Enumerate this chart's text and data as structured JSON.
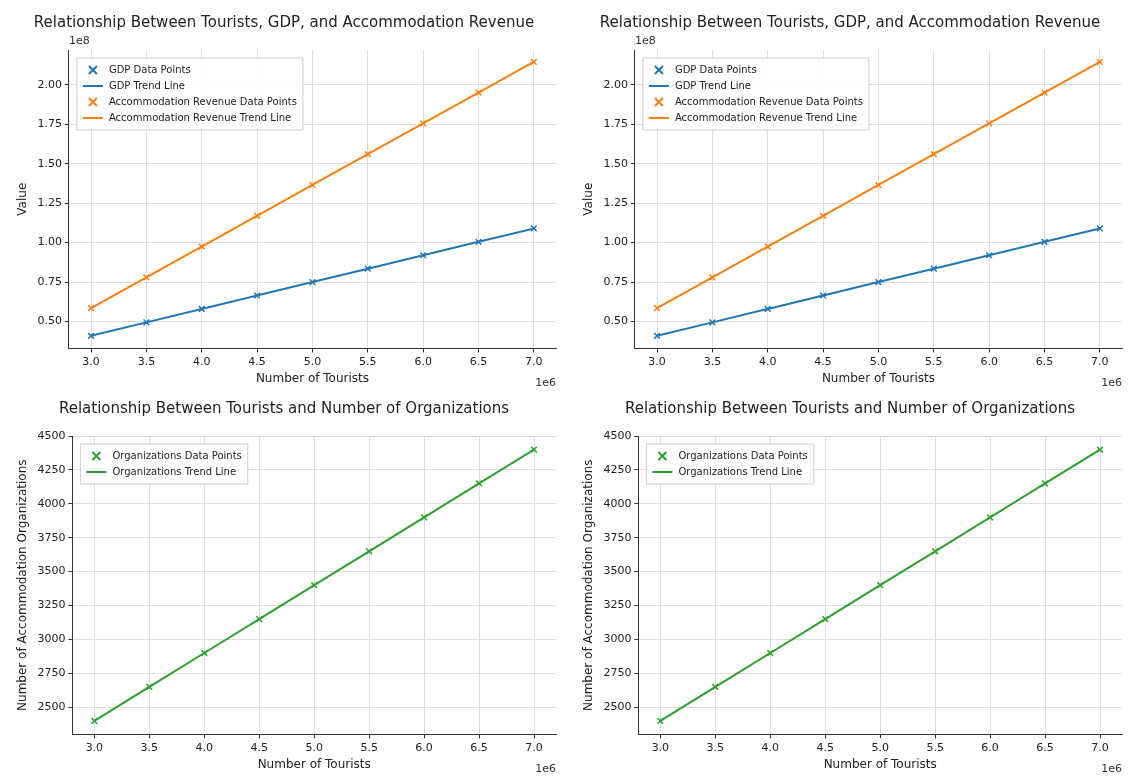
{
  "chart_data": [
    {
      "type": "scatter",
      "title": "Relationship Between Tourists, GDP, and Accommodation Revenue",
      "xlabel": "Number of Tourists",
      "ylabel": "Value",
      "annotations": [
        "1e8",
        "1e6"
      ],
      "x": [
        3.0,
        3.5,
        4.0,
        4.5,
        5.0,
        5.5,
        6.0,
        6.5,
        7.0
      ],
      "series": [
        {
          "name": "GDP Data Points",
          "type": "scatter",
          "marker": "cross",
          "color": "#1f77b4",
          "values": [
            0.41,
            0.495,
            0.58,
            0.665,
            0.75,
            0.835,
            0.92,
            1.005,
            1.09
          ]
        },
        {
          "name": "GDP Trend Line",
          "type": "line",
          "marker": "none",
          "color": "#1f77b4",
          "values": [
            0.41,
            0.495,
            0.58,
            0.665,
            0.75,
            0.835,
            0.92,
            1.005,
            1.09
          ]
        },
        {
          "name": "Accommodation Revenue Data Points",
          "type": "scatter",
          "marker": "cross",
          "color": "#ff7f0e",
          "values": [
            0.585,
            0.78,
            0.975,
            1.17,
            1.365,
            1.56,
            1.755,
            1.95,
            2.145
          ]
        },
        {
          "name": "Accommodation Revenue Trend Line",
          "type": "line",
          "marker": "none",
          "color": "#ff7f0e",
          "values": [
            0.585,
            0.78,
            0.975,
            1.17,
            1.365,
            1.56,
            1.755,
            1.95,
            2.145
          ]
        }
      ],
      "xlim": [
        2.8,
        7.2
      ],
      "xticks": [
        {
          "value": 3,
          "label": "3.0"
        },
        {
          "value": 3.5,
          "label": "3.5"
        },
        {
          "value": 4,
          "label": "4.0"
        },
        {
          "value": 4.5,
          "label": "4.5"
        },
        {
          "value": 5,
          "label": "5.0"
        },
        {
          "value": 5.5,
          "label": "5.5"
        },
        {
          "value": 6,
          "label": "6.0"
        },
        {
          "value": 6.5,
          "label": "6.5"
        },
        {
          "value": 7,
          "label": "7.0"
        }
      ],
      "ylim": [
        0.33,
        2.22
      ],
      "yticks": [
        {
          "value": 0.5,
          "label": "0.50"
        },
        {
          "value": 0.75,
          "label": "0.75"
        },
        {
          "value": 1,
          "label": "1.00"
        },
        {
          "value": 1.25,
          "label": "1.25"
        },
        {
          "value": 1.5,
          "label": "1.50"
        },
        {
          "value": 1.75,
          "label": "1.75"
        },
        {
          "value": 2,
          "label": "2.00"
        }
      ],
      "grid": true,
      "legend": "top left"
    },
    {
      "type": "scatter",
      "title": "Relationship Between Tourists, GDP, and Accommodation Revenue",
      "xlabel": "Number of Tourists",
      "ylabel": "Value",
      "annotations": [
        "1e8",
        "1e6"
      ],
      "x": [
        3.0,
        3.5,
        4.0,
        4.5,
        5.0,
        5.5,
        6.0,
        6.5,
        7.0
      ],
      "series": [
        {
          "name": "GDP Data Points",
          "type": "scatter",
          "marker": "cross",
          "color": "#1f77b4",
          "values": [
            0.41,
            0.495,
            0.58,
            0.665,
            0.75,
            0.835,
            0.92,
            1.005,
            1.09
          ]
        },
        {
          "name": "GDP Trend Line",
          "type": "line",
          "marker": "none",
          "color": "#1f77b4",
          "values": [
            0.41,
            0.495,
            0.58,
            0.665,
            0.75,
            0.835,
            0.92,
            1.005,
            1.09
          ]
        },
        {
          "name": "Accommodation Revenue Data Points",
          "type": "scatter",
          "marker": "cross",
          "color": "#ff7f0e",
          "values": [
            0.585,
            0.78,
            0.975,
            1.17,
            1.365,
            1.56,
            1.755,
            1.95,
            2.145
          ]
        },
        {
          "name": "Accommodation Revenue Trend Line",
          "type": "line",
          "marker": "none",
          "color": "#ff7f0e",
          "values": [
            0.585,
            0.78,
            0.975,
            1.17,
            1.365,
            1.56,
            1.755,
            1.95,
            2.145
          ]
        }
      ],
      "xlim": [
        2.8,
        7.2
      ],
      "xticks": [
        {
          "value": 3,
          "label": "3.0"
        },
        {
          "value": 3.5,
          "label": "3.5"
        },
        {
          "value": 4,
          "label": "4.0"
        },
        {
          "value": 4.5,
          "label": "4.5"
        },
        {
          "value": 5,
          "label": "5.0"
        },
        {
          "value": 5.5,
          "label": "5.5"
        },
        {
          "value": 6,
          "label": "6.0"
        },
        {
          "value": 6.5,
          "label": "6.5"
        },
        {
          "value": 7,
          "label": "7.0"
        }
      ],
      "ylim": [
        0.33,
        2.22
      ],
      "yticks": [
        {
          "value": 0.5,
          "label": "0.50"
        },
        {
          "value": 0.75,
          "label": "0.75"
        },
        {
          "value": 1,
          "label": "1.00"
        },
        {
          "value": 1.25,
          "label": "1.25"
        },
        {
          "value": 1.5,
          "label": "1.50"
        },
        {
          "value": 1.75,
          "label": "1.75"
        },
        {
          "value": 2,
          "label": "2.00"
        }
      ],
      "grid": true,
      "legend": "top left"
    },
    {
      "type": "scatter",
      "title": "Relationship Between Tourists and Number of Organizations",
      "xlabel": "Number of Tourists",
      "ylabel": "Number of Accommodation Organizations",
      "annotations": [
        "1e6"
      ],
      "x": [
        3.0,
        3.5,
        4.0,
        4.5,
        5.0,
        5.5,
        6.0,
        6.5,
        7.0
      ],
      "series": [
        {
          "name": "Organizations Data Points",
          "type": "scatter",
          "marker": "cross",
          "color": "#2ca02c",
          "values": [
            2400,
            2650,
            2900,
            3150,
            3400,
            3650,
            3900,
            4150,
            4400
          ]
        },
        {
          "name": "Organizations Trend Line",
          "type": "line",
          "marker": "none",
          "color": "#2ca02c",
          "values": [
            2400,
            2650,
            2900,
            3150,
            3400,
            3650,
            3900,
            4150,
            4400
          ]
        }
      ],
      "xlim": [
        2.8,
        7.2
      ],
      "xticks": [
        {
          "value": 3,
          "label": "3.0"
        },
        {
          "value": 3.5,
          "label": "3.5"
        },
        {
          "value": 4,
          "label": "4.0"
        },
        {
          "value": 4.5,
          "label": "4.5"
        },
        {
          "value": 5,
          "label": "5.0"
        },
        {
          "value": 5.5,
          "label": "5.5"
        },
        {
          "value": 6,
          "label": "6.0"
        },
        {
          "value": 6.5,
          "label": "6.5"
        },
        {
          "value": 7,
          "label": "7.0"
        }
      ],
      "ylim": [
        2300,
        4500
      ],
      "yticks": [
        2500,
        2750,
        3000,
        3250,
        3500,
        3750,
        4000,
        4250,
        4500
      ],
      "grid": true,
      "legend": "top left"
    },
    {
      "type": "scatter",
      "title": "Relationship Between Tourists and Number of Organizations",
      "xlabel": "Number of Tourists",
      "ylabel": "Number of Accommodation Organizations",
      "annotations": [
        "1e6"
      ],
      "x": [
        3.0,
        3.5,
        4.0,
        4.5,
        5.0,
        5.5,
        6.0,
        6.5,
        7.0
      ],
      "series": [
        {
          "name": "Organizations Data Points",
          "type": "scatter",
          "marker": "cross",
          "color": "#2ca02c",
          "values": [
            2400,
            2650,
            2900,
            3150,
            3400,
            3650,
            3900,
            4150,
            4400
          ]
        },
        {
          "name": "Organizations Trend Line",
          "type": "line",
          "marker": "none",
          "color": "#2ca02c",
          "values": [
            2400,
            2650,
            2900,
            3150,
            3400,
            3650,
            3900,
            4150,
            4400
          ]
        }
      ],
      "xlim": [
        2.8,
        7.2
      ],
      "xticks": [
        {
          "value": 3,
          "label": "3.0"
        },
        {
          "value": 3.5,
          "label": "3.5"
        },
        {
          "value": 4,
          "label": "4.0"
        },
        {
          "value": 4.5,
          "label": "4.5"
        },
        {
          "value": 5,
          "label": "5.0"
        },
        {
          "value": 5.5,
          "label": "5.5"
        },
        {
          "value": 6,
          "label": "6.0"
        },
        {
          "value": 6.5,
          "label": "6.5"
        },
        {
          "value": 7,
          "label": "7.0"
        }
      ],
      "ylim": [
        2300,
        4500
      ],
      "yticks": [
        2500,
        2750,
        3000,
        3250,
        3500,
        3750,
        4000,
        4250,
        4500
      ],
      "grid": true,
      "legend": "top left"
    }
  ]
}
